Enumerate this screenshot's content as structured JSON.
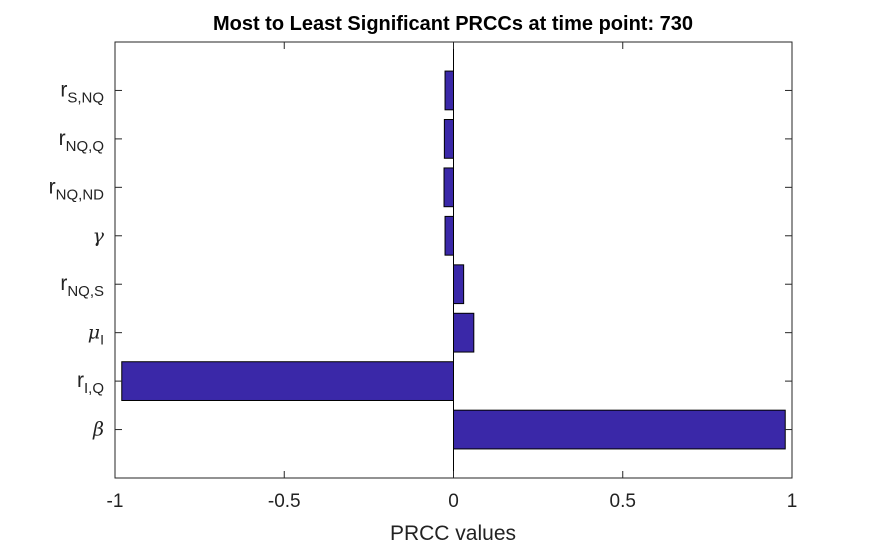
{
  "chart_data": {
    "type": "bar",
    "orientation": "horizontal",
    "title": "Most to Least Significant PRCCs at time point: 730",
    "xlabel": "PRCC values",
    "ylabel": "",
    "xlim": [
      -1,
      1
    ],
    "x_ticks": [
      "-1",
      "-0.5",
      "0",
      "0.5",
      "1"
    ],
    "x_tick_values": [
      -1,
      -0.5,
      0,
      0.5,
      1
    ],
    "categories": [
      {
        "base": "β",
        "sub": "",
        "greek": true
      },
      {
        "base": "r",
        "sub": "I,Q",
        "greek": false
      },
      {
        "base": "μ",
        "sub": "I",
        "greek": true
      },
      {
        "base": "r",
        "sub": "NQ,S",
        "greek": false
      },
      {
        "base": "γ",
        "sub": "",
        "greek": true
      },
      {
        "base": "r",
        "sub": "NQ,ND",
        "greek": false
      },
      {
        "base": "r",
        "sub": "NQ,Q",
        "greek": false
      },
      {
        "base": "r",
        "sub": "S,NQ",
        "greek": false
      }
    ],
    "values": [
      0.98,
      -0.98,
      0.06,
      0.03,
      -0.025,
      -0.028,
      -0.027,
      -0.025
    ],
    "bar_color": "#3a28a8",
    "grid": false,
    "box": true
  }
}
